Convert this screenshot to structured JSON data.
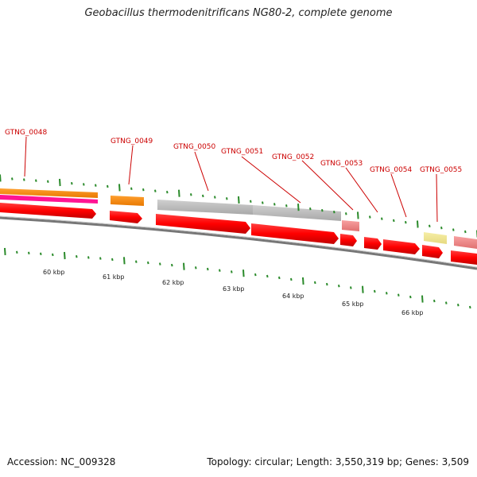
{
  "title": "Geobacillus thermodenitrificans NG80-2, complete genome",
  "footer": {
    "accession": "Accession: NC_009328",
    "summary": "Topology: circular; Length: 3,550,319 bp; Genes: 3,509"
  },
  "gene_labels": [
    "GTNG_0048",
    "GTNG_0049",
    "GTNG_0050",
    "GTNG_0051",
    "GTNG_0052",
    "GTNG_0053",
    "GTNG_0054",
    "GTNG_0055"
  ],
  "kbp_labels": [
    "60 kbp",
    "61 kbp",
    "62 kbp",
    "63 kbp",
    "64 kbp",
    "65 kbp",
    "66 kbp"
  ],
  "colors": {
    "gene_label": "#cc0000",
    "cds": "#ff0000",
    "tick": "#2a8a2a",
    "backbone": "#888888",
    "orange": "#ff8c00",
    "magenta": "#ff1493",
    "gray": "#c0c0c0",
    "pink": "#f08080",
    "yellow": "#f0e68c"
  }
}
